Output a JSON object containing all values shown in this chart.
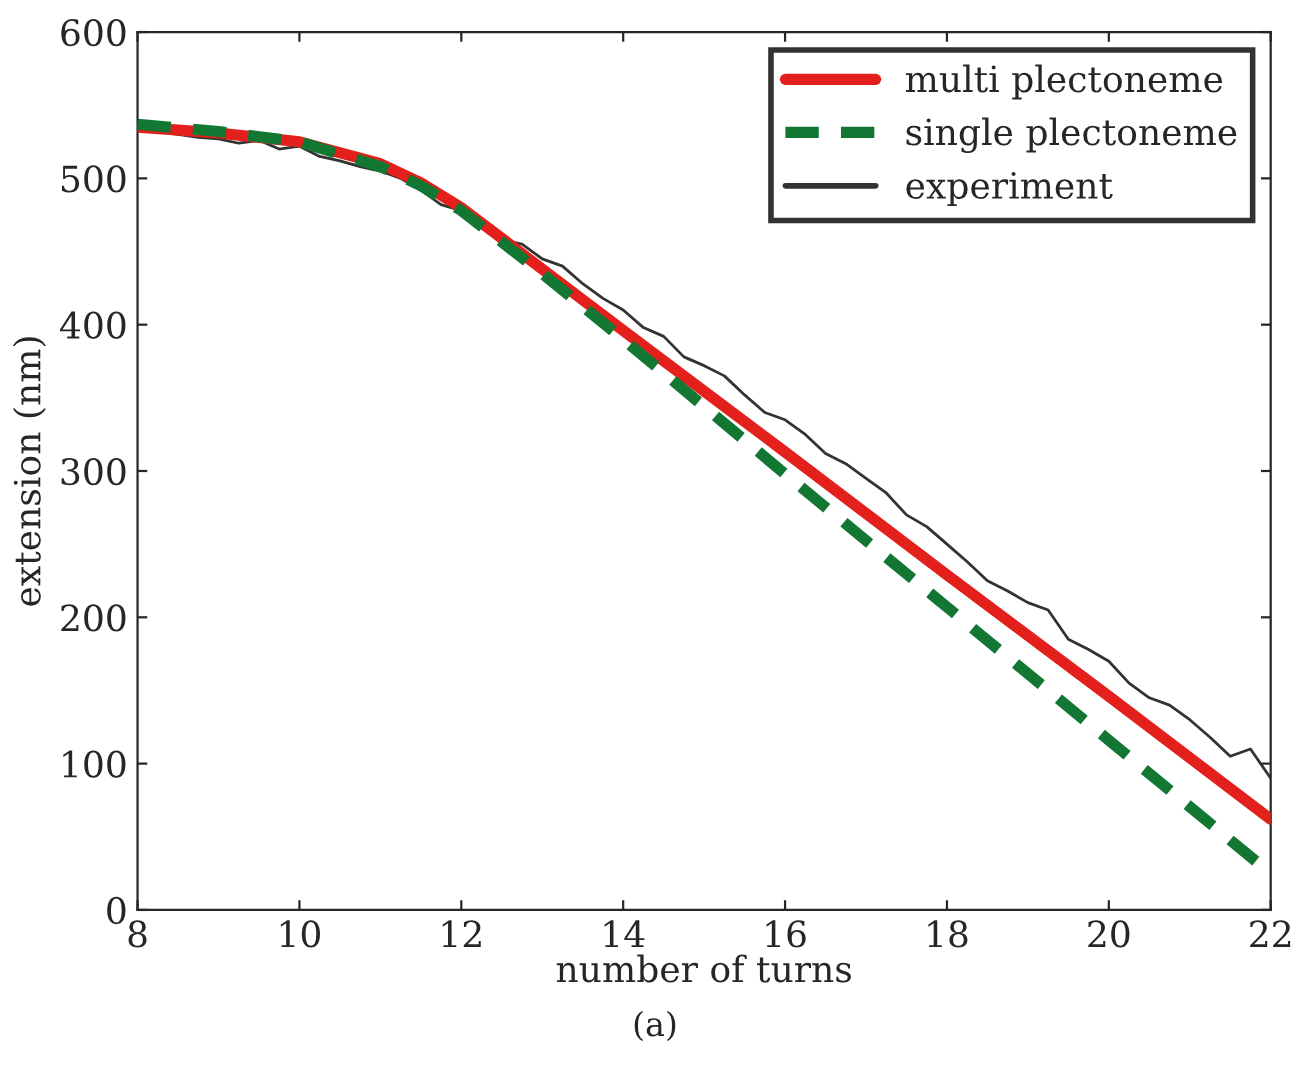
{
  "chart_data": {
    "type": "line",
    "xlabel": "number of turns",
    "ylabel": "extension (nm)",
    "xlim": [
      8,
      22
    ],
    "ylim": [
      0,
      600
    ],
    "xticks": [
      8,
      10,
      12,
      14,
      16,
      18,
      20,
      22
    ],
    "yticks": [
      0,
      100,
      200,
      300,
      400,
      500,
      600
    ],
    "grid": false,
    "legend": "top right",
    "annotations": [
      "(a)"
    ],
    "series": [
      {
        "name": "experiment",
        "color": "#333333",
        "line_style": "solid",
        "x": [
          8,
          8.25,
          8.5,
          8.75,
          9,
          9.25,
          9.5,
          9.75,
          10,
          10.25,
          10.5,
          10.75,
          11,
          11.25,
          11.5,
          11.75,
          12,
          12.25,
          12.5,
          12.75,
          13,
          13.25,
          13.5,
          13.75,
          14,
          14.25,
          14.5,
          14.75,
          15,
          15.25,
          15.5,
          15.75,
          16,
          16.25,
          16.5,
          16.75,
          17,
          17.25,
          17.5,
          17.75,
          18,
          18.25,
          18.5,
          18.75,
          19,
          19.25,
          19.5,
          19.75,
          20,
          20.25,
          20.5,
          20.75,
          21,
          21.25,
          21.5,
          21.75,
          22
        ],
        "values": [
          535,
          532,
          530,
          528,
          527,
          524,
          526,
          520,
          522,
          515,
          512,
          508,
          505,
          500,
          492,
          482,
          478,
          468,
          458,
          455,
          445,
          440,
          428,
          418,
          410,
          398,
          392,
          378,
          372,
          365,
          352,
          340,
          335,
          325,
          312,
          305,
          295,
          285,
          270,
          262,
          250,
          238,
          225,
          218,
          210,
          205,
          185,
          178,
          170,
          155,
          145,
          140,
          130,
          118,
          105,
          110,
          90
        ]
      },
      {
        "name": "multi plectoneme",
        "color": "#e3201b",
        "line_style": "solid",
        "x": [
          8,
          9,
          10,
          11,
          11.5,
          12,
          13,
          14,
          16,
          18,
          20,
          22
        ],
        "values": [
          535,
          531,
          525,
          510,
          497,
          480,
          438,
          396,
          313,
          229,
          146,
          62
        ]
      },
      {
        "name": "single plectoneme",
        "color": "#117733",
        "line_style": "dashed",
        "x": [
          8,
          9,
          10,
          11,
          11.5,
          12,
          13,
          14,
          16,
          18,
          20,
          22
        ],
        "values": [
          537,
          532,
          525,
          508,
          495,
          478,
          435,
          390,
          298,
          207,
          116,
          25
        ]
      }
    ]
  }
}
